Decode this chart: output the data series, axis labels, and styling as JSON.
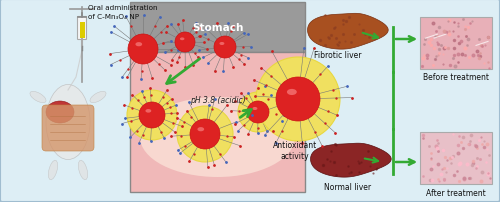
{
  "bg_color": "#ddeef5",
  "border_color": "#a0bdd0",
  "title_text": "Oral administration\nof C-Mn₃O₄ NP",
  "stomach_label": "Stomach",
  "ph_label": "pH 3.8 (acidic)",
  "antioxidant_label": "Antioxidant\nactivity",
  "fibrotic_label": "Fibrotic liver",
  "normal_label": "Normal liver",
  "before_label": "Before treatment",
  "after_label": "After treatment",
  "stomach_grey": "#9a9a9a",
  "stomach_pink": "#f0b8b8",
  "stomach_pink2": "#f8d8d0",
  "yellow_halo": "#f0e060",
  "yellow_halo2": "#e8d840",
  "red_core": "#dd2222",
  "red_core2": "#cc1111",
  "green_arrow": "#33aa33",
  "fibrotic_color": "#b05828",
  "normal_color": "#8b2020",
  "before_tissue": "#e8b0b8",
  "after_tissue": "#e8c0c8",
  "text_color": "#111111",
  "figsize": [
    5.0,
    2.03
  ],
  "dpi": 100
}
